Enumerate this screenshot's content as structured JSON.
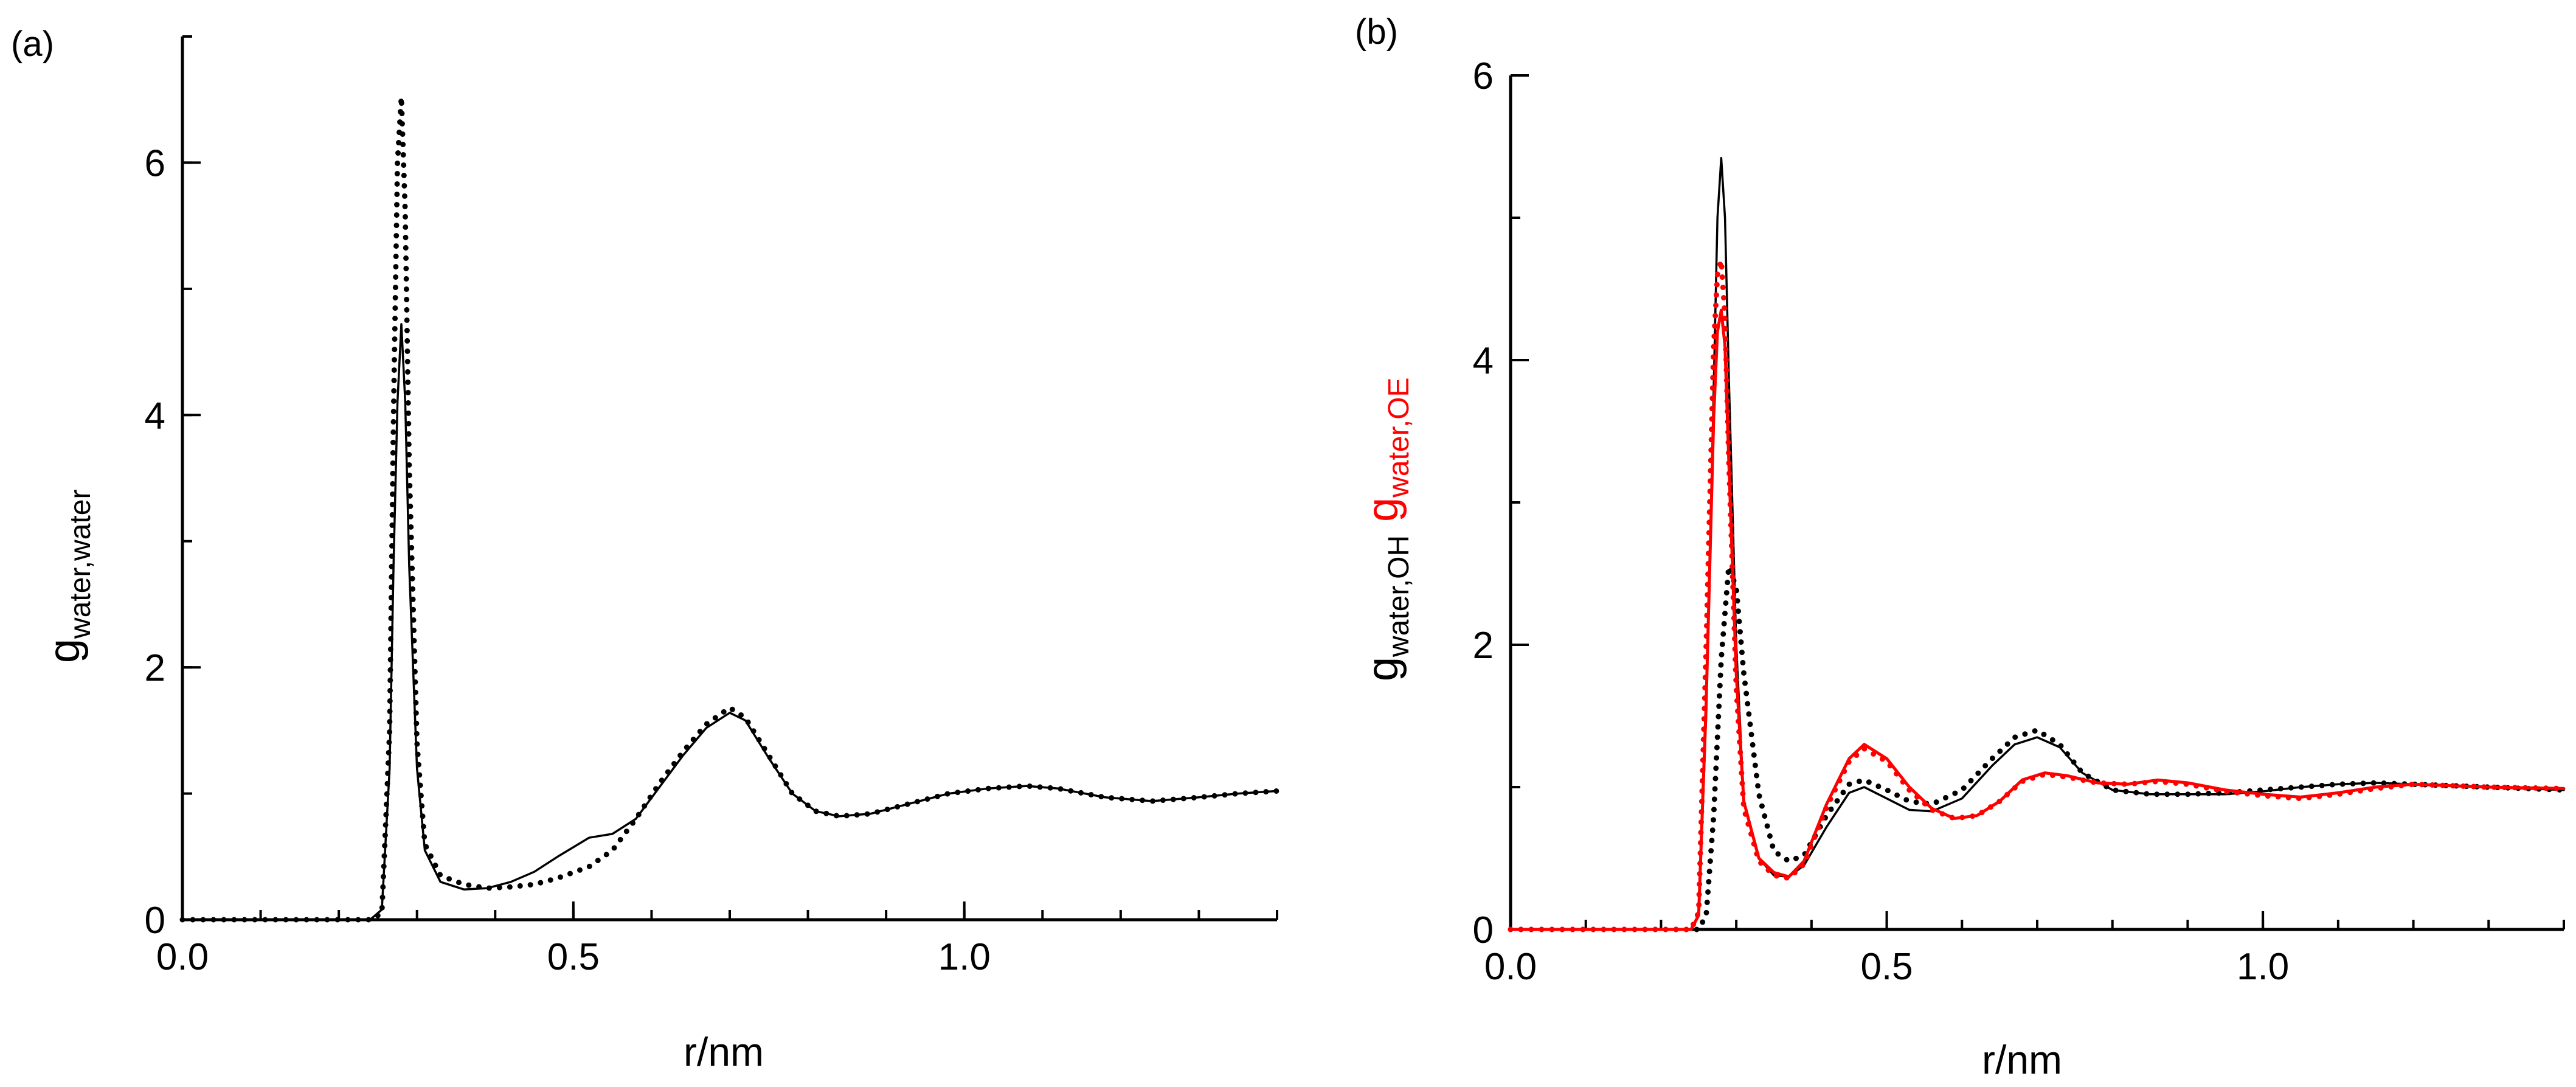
{
  "colors": {
    "black": "#000000",
    "red": "#ff0000"
  },
  "chart_data": [
    {
      "panel": "(a)",
      "type": "line",
      "title": "",
      "xlabel": "r/nm",
      "ylabel": {
        "main": "g",
        "subscript": "water,water"
      },
      "xlim": [
        0.0,
        1.4
      ],
      "ylim": [
        0,
        7
      ],
      "xticks": [
        {
          "value": 0.0,
          "label": "0.0"
        },
        {
          "value": 0.5,
          "label": "0.5"
        },
        {
          "value": 1.0,
          "label": "1.0"
        }
      ],
      "yticks": [
        {
          "value": 0,
          "label": "0"
        },
        {
          "value": 2,
          "label": "2"
        },
        {
          "value": 4,
          "label": "4"
        },
        {
          "value": 6,
          "label": "6"
        }
      ],
      "series": [
        {
          "name": "solid",
          "style": "solid",
          "color": "#000000",
          "x": [
            0.0,
            0.24,
            0.255,
            0.265,
            0.27,
            0.275,
            0.28,
            0.285,
            0.29,
            0.3,
            0.31,
            0.33,
            0.36,
            0.39,
            0.42,
            0.45,
            0.48,
            0.52,
            0.55,
            0.58,
            0.61,
            0.64,
            0.67,
            0.7,
            0.72,
            0.75,
            0.78,
            0.81,
            0.84,
            0.88,
            0.93,
            0.98,
            1.03,
            1.08,
            1.12,
            1.18,
            1.24,
            1.3,
            1.35,
            1.4
          ],
          "y": [
            0,
            0,
            0.08,
            1.2,
            2.8,
            4.1,
            4.72,
            4.1,
            2.8,
            1.2,
            0.55,
            0.3,
            0.24,
            0.25,
            0.3,
            0.38,
            0.5,
            0.65,
            0.68,
            0.8,
            1.05,
            1.3,
            1.52,
            1.64,
            1.58,
            1.28,
            1.0,
            0.86,
            0.82,
            0.84,
            0.92,
            1.0,
            1.04,
            1.06,
            1.04,
            0.97,
            0.94,
            0.97,
            1.0,
            1.02
          ]
        },
        {
          "name": "dotted",
          "style": "dotted",
          "color": "#000000",
          "x": [
            0.0,
            0.24,
            0.255,
            0.265,
            0.27,
            0.275,
            0.28,
            0.285,
            0.29,
            0.3,
            0.31,
            0.33,
            0.36,
            0.39,
            0.42,
            0.45,
            0.48,
            0.52,
            0.55,
            0.58,
            0.61,
            0.64,
            0.67,
            0.7,
            0.72,
            0.75,
            0.78,
            0.81,
            0.84,
            0.88,
            0.93,
            0.98,
            1.03,
            1.08,
            1.12,
            1.18,
            1.24,
            1.3,
            1.35,
            1.4
          ],
          "y": [
            0,
            0,
            0.05,
            1.5,
            4.0,
            6.0,
            6.52,
            5.6,
            3.6,
            1.4,
            0.6,
            0.35,
            0.28,
            0.25,
            0.26,
            0.28,
            0.33,
            0.42,
            0.55,
            0.8,
            1.08,
            1.33,
            1.55,
            1.68,
            1.6,
            1.3,
            1.0,
            0.86,
            0.82,
            0.84,
            0.92,
            1.0,
            1.04,
            1.06,
            1.04,
            0.97,
            0.94,
            0.97,
            1.0,
            1.02
          ]
        }
      ]
    },
    {
      "panel": "(b)",
      "type": "line",
      "title": "",
      "xlabel": "r/nm",
      "ylabel": {
        "parts": [
          {
            "main": "g",
            "subscript": "water,OH",
            "color": "#000000"
          },
          {
            "main": "g",
            "subscript": "water,OE",
            "color": "#ff0000"
          }
        ]
      },
      "xlim": [
        0.0,
        1.4
      ],
      "ylim": [
        0,
        6
      ],
      "xticks": [
        {
          "value": 0.0,
          "label": "0.0"
        },
        {
          "value": 0.5,
          "label": "0.5"
        },
        {
          "value": 1.0,
          "label": "1.0"
        }
      ],
      "yticks": [
        {
          "value": 0,
          "label": "0"
        },
        {
          "value": 2,
          "label": "2"
        },
        {
          "value": 4,
          "label": "4"
        },
        {
          "value": 6,
          "label": "6"
        }
      ],
      "series": [
        {
          "name": "OH solid",
          "style": "solid",
          "color": "#000000",
          "x": [
            0.0,
            0.24,
            0.25,
            0.26,
            0.27,
            0.275,
            0.28,
            0.285,
            0.29,
            0.3,
            0.31,
            0.33,
            0.35,
            0.37,
            0.39,
            0.42,
            0.45,
            0.47,
            0.5,
            0.53,
            0.56,
            0.6,
            0.64,
            0.67,
            0.7,
            0.73,
            0.76,
            0.8,
            0.85,
            0.9,
            0.95,
            1.0,
            1.05,
            1.1,
            1.15,
            1.2,
            1.3,
            1.4
          ],
          "y": [
            0,
            0,
            0.1,
            1.5,
            3.8,
            5.0,
            5.42,
            5.0,
            3.9,
            2.0,
            0.9,
            0.5,
            0.38,
            0.37,
            0.45,
            0.72,
            0.96,
            1.0,
            0.92,
            0.84,
            0.83,
            0.92,
            1.15,
            1.3,
            1.35,
            1.28,
            1.1,
            0.98,
            0.95,
            0.95,
            0.95,
            0.97,
            1.0,
            1.02,
            1.03,
            1.02,
            1.0,
            0.98
          ]
        },
        {
          "name": "OH dotted",
          "style": "dotted",
          "color": "#000000",
          "x": [
            0.0,
            0.25,
            0.26,
            0.27,
            0.28,
            0.29,
            0.3,
            0.31,
            0.33,
            0.35,
            0.37,
            0.39,
            0.42,
            0.45,
            0.47,
            0.5,
            0.53,
            0.56,
            0.6,
            0.64,
            0.67,
            0.7,
            0.73,
            0.76,
            0.8,
            0.85,
            0.9,
            0.95,
            1.0,
            1.05,
            1.1,
            1.15,
            1.2,
            1.3,
            1.4
          ],
          "y": [
            0,
            0,
            0.1,
            0.8,
            1.9,
            2.55,
            2.4,
            1.8,
            0.95,
            0.55,
            0.48,
            0.52,
            0.8,
            1.02,
            1.05,
            0.98,
            0.9,
            0.88,
            0.98,
            1.2,
            1.35,
            1.4,
            1.3,
            1.1,
            0.98,
            0.95,
            0.95,
            0.96,
            0.98,
            1.0,
            1.02,
            1.03,
            1.02,
            1.0,
            0.98
          ]
        },
        {
          "name": "OE solid",
          "style": "solid",
          "color": "#ff0000",
          "x": [
            0.0,
            0.24,
            0.25,
            0.26,
            0.27,
            0.275,
            0.28,
            0.285,
            0.29,
            0.3,
            0.31,
            0.33,
            0.35,
            0.37,
            0.39,
            0.42,
            0.45,
            0.47,
            0.5,
            0.53,
            0.56,
            0.59,
            0.62,
            0.65,
            0.68,
            0.71,
            0.74,
            0.78,
            0.82,
            0.86,
            0.9,
            0.95,
            1.0,
            1.05,
            1.1,
            1.15,
            1.2,
            1.3,
            1.4
          ],
          "y": [
            0,
            0,
            0.1,
            1.6,
            3.6,
            4.2,
            4.35,
            4.1,
            3.3,
            1.8,
            0.9,
            0.5,
            0.4,
            0.37,
            0.48,
            0.88,
            1.2,
            1.3,
            1.2,
            1.0,
            0.85,
            0.78,
            0.8,
            0.9,
            1.05,
            1.1,
            1.08,
            1.03,
            1.02,
            1.05,
            1.03,
            0.98,
            0.95,
            0.93,
            0.96,
            1.0,
            1.02,
            1.0,
            0.99
          ]
        },
        {
          "name": "OE dotted",
          "style": "dotted",
          "color": "#ff0000",
          "x": [
            0.0,
            0.24,
            0.25,
            0.26,
            0.27,
            0.275,
            0.28,
            0.285,
            0.29,
            0.3,
            0.31,
            0.33,
            0.35,
            0.37,
            0.39,
            0.42,
            0.45,
            0.47,
            0.5,
            0.53,
            0.56,
            0.59,
            0.62,
            0.65,
            0.68,
            0.71,
            0.74,
            0.78,
            0.82,
            0.86,
            0.9,
            0.95,
            1.0,
            1.05,
            1.1,
            1.15,
            1.2,
            1.3,
            1.4
          ],
          "y": [
            0,
            0,
            0.12,
            2.0,
            4.1,
            4.6,
            4.7,
            4.3,
            3.3,
            1.7,
            0.85,
            0.48,
            0.38,
            0.36,
            0.46,
            0.86,
            1.18,
            1.27,
            1.18,
            0.98,
            0.84,
            0.78,
            0.8,
            0.9,
            1.04,
            1.09,
            1.07,
            1.03,
            1.02,
            1.04,
            1.02,
            0.97,
            0.94,
            0.92,
            0.95,
            0.99,
            1.02,
            1.0,
            0.99
          ]
        }
      ]
    }
  ]
}
